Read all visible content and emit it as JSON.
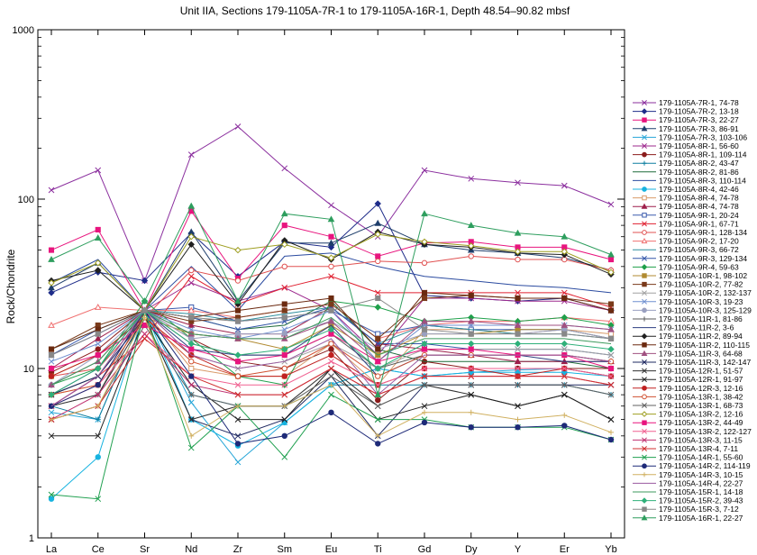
{
  "chart_data": {
    "type": "line",
    "title": "Unit IIA, Sections 179-1105A-7R-1 to 179-1105A-16R-1,  Depth 48.54–90.82 mbsf",
    "xlabel": "",
    "ylabel": "Rock/Chondrite",
    "y_scale": "log",
    "ylim": [
      1,
      1000
    ],
    "y_ticks": [
      "1",
      "10",
      "100",
      "1000"
    ],
    "grid": false,
    "legend_position": "right",
    "categories": [
      "La",
      "Ce",
      "Sr",
      "Nd",
      "Zr",
      "Sm",
      "Eu",
      "Ti",
      "Gd",
      "Dy",
      "Y",
      "Er",
      "Yb"
    ],
    "series": [
      {
        "name": "179-1105A-7R-1, 74-78",
        "color": "#8B2F9E",
        "marker": "x",
        "values": [
          113,
          148,
          33,
          183,
          268,
          152,
          92,
          60,
          148,
          132,
          125,
          120,
          93
        ]
      },
      {
        "name": "179-1105A-7R-2, 13-18",
        "color": "#1F2D8A",
        "marker": "diamond",
        "values": [
          28,
          37,
          33,
          63,
          35,
          56,
          52,
          94,
          27,
          26,
          25,
          26,
          22
        ]
      },
      {
        "name": "179-1105A-7R-3, 22-27",
        "color": "#E8157E",
        "marker": "square",
        "values": [
          50,
          66,
          22,
          85,
          34,
          70,
          60,
          46,
          55,
          56,
          52,
          52,
          44
        ]
      },
      {
        "name": "179-1105A-7R-3, 86-91",
        "color": "#1E3E6B",
        "marker": "triangle",
        "values": [
          30,
          42,
          22,
          64,
          25,
          55,
          55,
          72,
          54,
          50,
          48,
          45,
          38
        ]
      },
      {
        "name": "179-1105A-7R-3, 103-106",
        "color": "#27A6D8",
        "marker": "x",
        "values": [
          5.5,
          5,
          22,
          6.3,
          2.8,
          4.8,
          8,
          10,
          9,
          9.5,
          9.8,
          10,
          9
        ]
      },
      {
        "name": "179-1105A-8R-1, 56-60",
        "color": "#9E2A8E",
        "marker": "x",
        "values": [
          6,
          9,
          22,
          32,
          25,
          30,
          22,
          12,
          26,
          26,
          25,
          25,
          22
        ]
      },
      {
        "name": "179-1105A-8R-1, 109-114",
        "color": "#8B1C1C",
        "marker": "circle",
        "values": [
          9.5,
          13,
          22,
          15,
          11,
          10,
          13,
          6.5,
          11,
          10,
          10,
          10,
          10
        ]
      },
      {
        "name": "179-1105A-8R-2, 43-47",
        "color": "#0E7FA0",
        "marker": "plus",
        "values": [
          6,
          5,
          22,
          7,
          6,
          6,
          8,
          8,
          8,
          8,
          8,
          8,
          7
        ]
      },
      {
        "name": "179-1105A-8R-2, 81-86",
        "color": "#1F6B3A",
        "marker": "none",
        "values": [
          7,
          9,
          22,
          20,
          17,
          18,
          25,
          13,
          11,
          11,
          11,
          11,
          10
        ]
      },
      {
        "name": "179-1105A-8R-3, 110-114",
        "color": "#2B4BA0",
        "marker": "none",
        "values": [
          32,
          44,
          22,
          40,
          22,
          46,
          48,
          40,
          35,
          33,
          31,
          30,
          28
        ]
      },
      {
        "name": "179-1105A-8R-4, 42-46",
        "color": "#17B3E0",
        "marker": "circle",
        "values": [
          1.7,
          3,
          22,
          5,
          3.5,
          4.8,
          8,
          10,
          9,
          9.5,
          9.5,
          9.5,
          9
        ]
      },
      {
        "name": "179-1105A-8R-4, 74-78",
        "color": "#D99B6A",
        "marker": "square-open",
        "values": [
          7,
          8,
          22,
          10,
          9,
          9,
          14,
          8,
          17,
          17,
          16,
          17,
          16
        ]
      },
      {
        "name": "179-1105A-8R-4, 74-78",
        "color": "#9E1F4B",
        "marker": "triangle",
        "values": [
          10,
          15,
          22,
          18,
          16,
          16,
          23,
          14,
          13,
          12,
          11,
          11,
          11
        ]
      },
      {
        "name": "179-1105A-9R-1, 20-24",
        "color": "#3B5BAD",
        "marker": "square-open",
        "values": [
          12,
          17,
          22,
          23,
          19,
          20,
          22,
          16,
          18,
          17,
          17,
          17,
          15
        ]
      },
      {
        "name": "179-1105A-9R-1, 67-71",
        "color": "#E02030",
        "marker": "x",
        "values": [
          6,
          9,
          15,
          35,
          24,
          30,
          35,
          28,
          28,
          28,
          28,
          28,
          23
        ]
      },
      {
        "name": "179-1105A-9R-1, 128-134",
        "color": "#E05050",
        "marker": "circle-open",
        "values": [
          9,
          10,
          20,
          38,
          33,
          40,
          40,
          43,
          42,
          46,
          44,
          44,
          38
        ]
      },
      {
        "name": "179-1105A-9R-2, 17-20",
        "color": "#F07070",
        "marker": "triangle-open",
        "values": [
          18,
          23,
          22,
          22,
          20,
          22,
          24,
          15,
          18,
          19,
          19,
          20,
          19
        ]
      },
      {
        "name": "179-1105A-9R-3, 66-72",
        "color": "#2F8F9E",
        "marker": "none",
        "values": [
          13,
          17,
          22,
          21,
          19,
          21,
          23,
          14,
          18,
          17,
          16,
          16,
          15
        ]
      },
      {
        "name": "179-1105A-9R-3, 129-134",
        "color": "#3355A8",
        "marker": "x",
        "values": [
          12,
          16,
          22,
          20,
          17,
          19,
          23,
          14,
          14,
          13,
          13,
          13,
          12
        ]
      },
      {
        "name": "179-1105A-9R-4, 59-63",
        "color": "#1FA04A",
        "marker": "diamond",
        "values": [
          8,
          10,
          25,
          15,
          9,
          8,
          25,
          23,
          19,
          20,
          19,
          20,
          18
        ]
      },
      {
        "name": "179-1105A-10R-1, 98-102",
        "color": "#B08A30",
        "marker": "square",
        "values": [
          9,
          12,
          20,
          16,
          15,
          13,
          18,
          12,
          16,
          16,
          17,
          17,
          15
        ]
      },
      {
        "name": "179-1105A-10R-2, 77-82",
        "color": "#7A3A1A",
        "marker": "square",
        "values": [
          13,
          18,
          22,
          19,
          20,
          22,
          24,
          15,
          26,
          27,
          26,
          26,
          24
        ]
      },
      {
        "name": "179-1105A-10R-2, 132-137",
        "color": "#A0A0A0",
        "marker": "x",
        "values": [
          7,
          9,
          22,
          12,
          10,
          11,
          14,
          10,
          13,
          13,
          13,
          13,
          12
        ]
      },
      {
        "name": "179-1105A-10R-3, 19-23",
        "color": "#6F8FD0",
        "marker": "x",
        "values": [
          11,
          14,
          22,
          17,
          15,
          17,
          22,
          11,
          18,
          18,
          18,
          18,
          17
        ]
      },
      {
        "name": "179-1105A-10R-3, 125-129",
        "color": "#9AA0C0",
        "marker": "circle",
        "values": [
          8,
          12,
          22,
          15,
          16,
          16,
          19,
          13,
          16,
          16,
          16,
          17,
          15
        ]
      },
      {
        "name": "179-1105A-11R-1, 81-86",
        "color": "#5A5A5A",
        "marker": "plus",
        "values": [
          6,
          7,
          22,
          14,
          12,
          12,
          16,
          10,
          12,
          12,
          12,
          12,
          11
        ]
      },
      {
        "name": "179-1105A-11R-2, 3-6",
        "color": "#2C3E80",
        "marker": "none",
        "values": [
          7,
          10,
          22,
          13,
          12,
          12,
          18,
          9,
          12,
          12,
          12,
          11,
          11
        ]
      },
      {
        "name": "179-1105A-11R-2, 89-94",
        "color": "#202020",
        "marker": "diamond",
        "values": [
          33,
          38,
          22,
          54,
          24,
          57,
          44,
          64,
          54,
          52,
          48,
          47,
          36
        ]
      },
      {
        "name": "179-1105A-11R-2, 110-115",
        "color": "#6B2A10",
        "marker": "square",
        "values": [
          13,
          17,
          22,
          20,
          22,
          24,
          26,
          13,
          28,
          27,
          26,
          26,
          22
        ]
      },
      {
        "name": "179-1105A-11R-3, 64-68",
        "color": "#A05080",
        "marker": "triangle",
        "values": [
          8,
          11,
          22,
          16,
          15,
          15,
          19,
          11,
          19,
          19,
          18,
          18,
          17
        ]
      },
      {
        "name": "179-1105A-11R-3, 142-147",
        "color": "#1E2860",
        "marker": "x",
        "values": [
          7,
          9,
          20,
          5,
          4,
          5,
          9,
          4,
          8,
          8,
          8,
          8,
          8
        ]
      },
      {
        "name": "179-1105A-12R-1, 51-57",
        "color": "#303030",
        "marker": "x",
        "values": [
          6,
          7,
          20,
          5,
          6,
          6,
          10,
          6,
          8,
          7,
          6,
          7,
          5
        ]
      },
      {
        "name": "179-1105A-12R-1, 91-97",
        "color": "#202020",
        "marker": "x",
        "values": [
          4,
          4,
          20,
          8,
          5,
          5,
          10,
          5,
          6,
          7,
          6,
          7,
          5
        ]
      },
      {
        "name": "179-1105A-12R-3, 12-16",
        "color": "#C02020",
        "marker": "circle",
        "values": [
          9,
          12,
          20,
          12,
          9,
          9,
          12,
          8,
          10,
          10,
          9,
          10,
          9
        ]
      },
      {
        "name": "179-1105A-13R-1, 38-42",
        "color": "#D05030",
        "marker": "circle-open",
        "values": [
          7,
          8,
          20,
          11,
          9,
          10,
          14,
          9,
          12,
          12,
          12,
          12,
          11
        ]
      },
      {
        "name": "179-1105A-13R-1, 68-73",
        "color": "#606060",
        "marker": "x",
        "values": [
          5,
          6,
          18,
          7,
          6,
          6,
          9,
          6,
          8,
          8,
          8,
          8,
          7
        ]
      },
      {
        "name": "179-1105A-13R-2, 12-16",
        "color": "#9E9E20",
        "marker": "diamond-open",
        "values": [
          32,
          42,
          22,
          60,
          50,
          54,
          45,
          62,
          56,
          53,
          49,
          49,
          37
        ]
      },
      {
        "name": "179-1105A-13R-2, 44-49",
        "color": "#E8157E",
        "marker": "square",
        "values": [
          10,
          12,
          18,
          13,
          11,
          12,
          16,
          11,
          13,
          13,
          12,
          12,
          10
        ]
      },
      {
        "name": "179-1105A-13R-2, 122-127",
        "color": "#F06090",
        "marker": "x",
        "values": [
          6,
          8,
          16,
          9,
          8,
          8,
          11,
          8,
          10,
          10,
          10,
          10,
          9
        ]
      },
      {
        "name": "179-1105A-13R-3, 11-15",
        "color": "#C03070",
        "marker": "x",
        "values": [
          5,
          7,
          16,
          8,
          7,
          7,
          10,
          7,
          9,
          9,
          9,
          9,
          8
        ]
      },
      {
        "name": "179-1105A-13R-4, 7-11",
        "color": "#D03030",
        "marker": "x",
        "values": [
          5,
          6,
          15,
          9,
          7,
          7,
          10,
          7,
          9,
          9,
          9,
          9,
          8
        ]
      },
      {
        "name": "179-1105A-14R-1, 55-60",
        "color": "#20A050",
        "marker": "x",
        "values": [
          1.8,
          1.7,
          22,
          3.4,
          6,
          3,
          7,
          5,
          5,
          4.5,
          4.5,
          4.5,
          3.8
        ]
      },
      {
        "name": "179-1105A-14R-2, 114-119",
        "color": "#1E2A78",
        "marker": "circle",
        "values": [
          6,
          8,
          22,
          9,
          3.6,
          4,
          5.5,
          3.6,
          4.8,
          4.5,
          4.5,
          4.6,
          3.8
        ]
      },
      {
        "name": "179-1105A-14R-3, 10-15",
        "color": "#D0B060",
        "marker": "plus",
        "values": [
          5,
          6,
          20,
          4,
          6,
          6,
          8,
          4,
          5.5,
          5.5,
          5,
          5.3,
          4.2
        ]
      },
      {
        "name": "179-1105A-14R-4, 22-27",
        "color": "#9A5AA0",
        "marker": "none",
        "values": [
          6,
          9,
          22,
          12,
          10,
          11,
          15,
          7,
          12,
          12,
          12,
          12,
          11
        ]
      },
      {
        "name": "179-1105A-15R-1, 14-18",
        "color": "#3C9A5C",
        "marker": "none",
        "values": [
          8,
          11,
          22,
          16,
          15,
          15,
          20,
          12,
          15,
          15,
          15,
          15,
          14
        ]
      },
      {
        "name": "179-1105A-15R-2, 39-43",
        "color": "#2FB07A",
        "marker": "diamond",
        "values": [
          7,
          10,
          22,
          14,
          12,
          13,
          17,
          10,
          14,
          14,
          14,
          14,
          13
        ]
      },
      {
        "name": "179-1105A-15R-3, 7-12",
        "color": "#888888",
        "marker": "square",
        "values": [
          12,
          16,
          22,
          20,
          19,
          20,
          22,
          26,
          17,
          16,
          16,
          16,
          15
        ]
      },
      {
        "name": "179-1105A-16R-1, 22-27",
        "color": "#2E9E5E",
        "marker": "triangle",
        "values": [
          44,
          59,
          25,
          91,
          25,
          82,
          76,
          7,
          82,
          70,
          63,
          60,
          47
        ]
      }
    ]
  }
}
